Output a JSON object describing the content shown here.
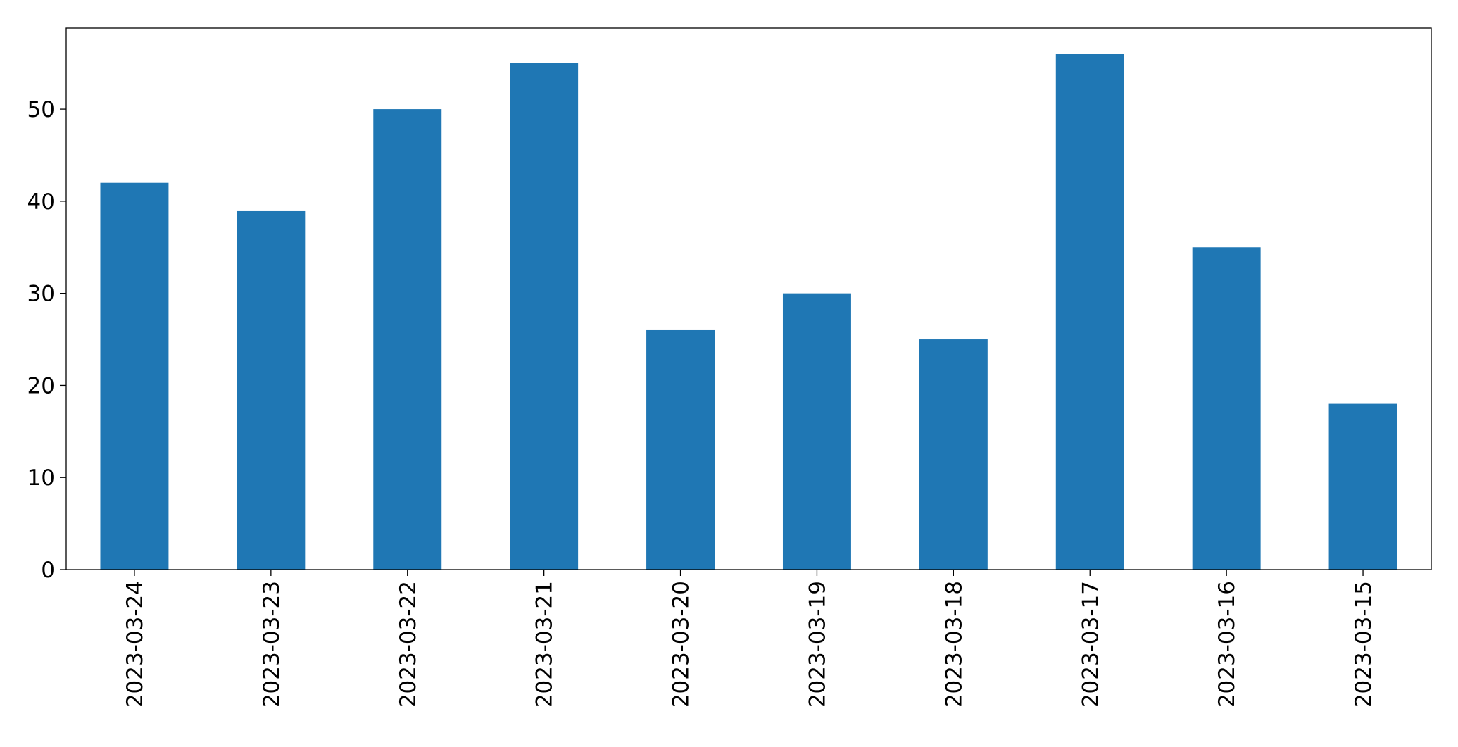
{
  "chart_data": {
    "type": "bar",
    "categories": [
      "2023-03-24",
      "2023-03-23",
      "2023-03-22",
      "2023-03-21",
      "2023-03-20",
      "2023-03-19",
      "2023-03-18",
      "2023-03-17",
      "2023-03-16",
      "2023-03-15"
    ],
    "values": [
      42,
      39,
      50,
      55,
      26,
      30,
      25,
      56,
      35,
      18
    ],
    "color": "#1f77b4",
    "ylim": [
      0,
      58.8
    ],
    "yticks": [
      0,
      10,
      20,
      30,
      40,
      50
    ],
    "grid": false
  }
}
